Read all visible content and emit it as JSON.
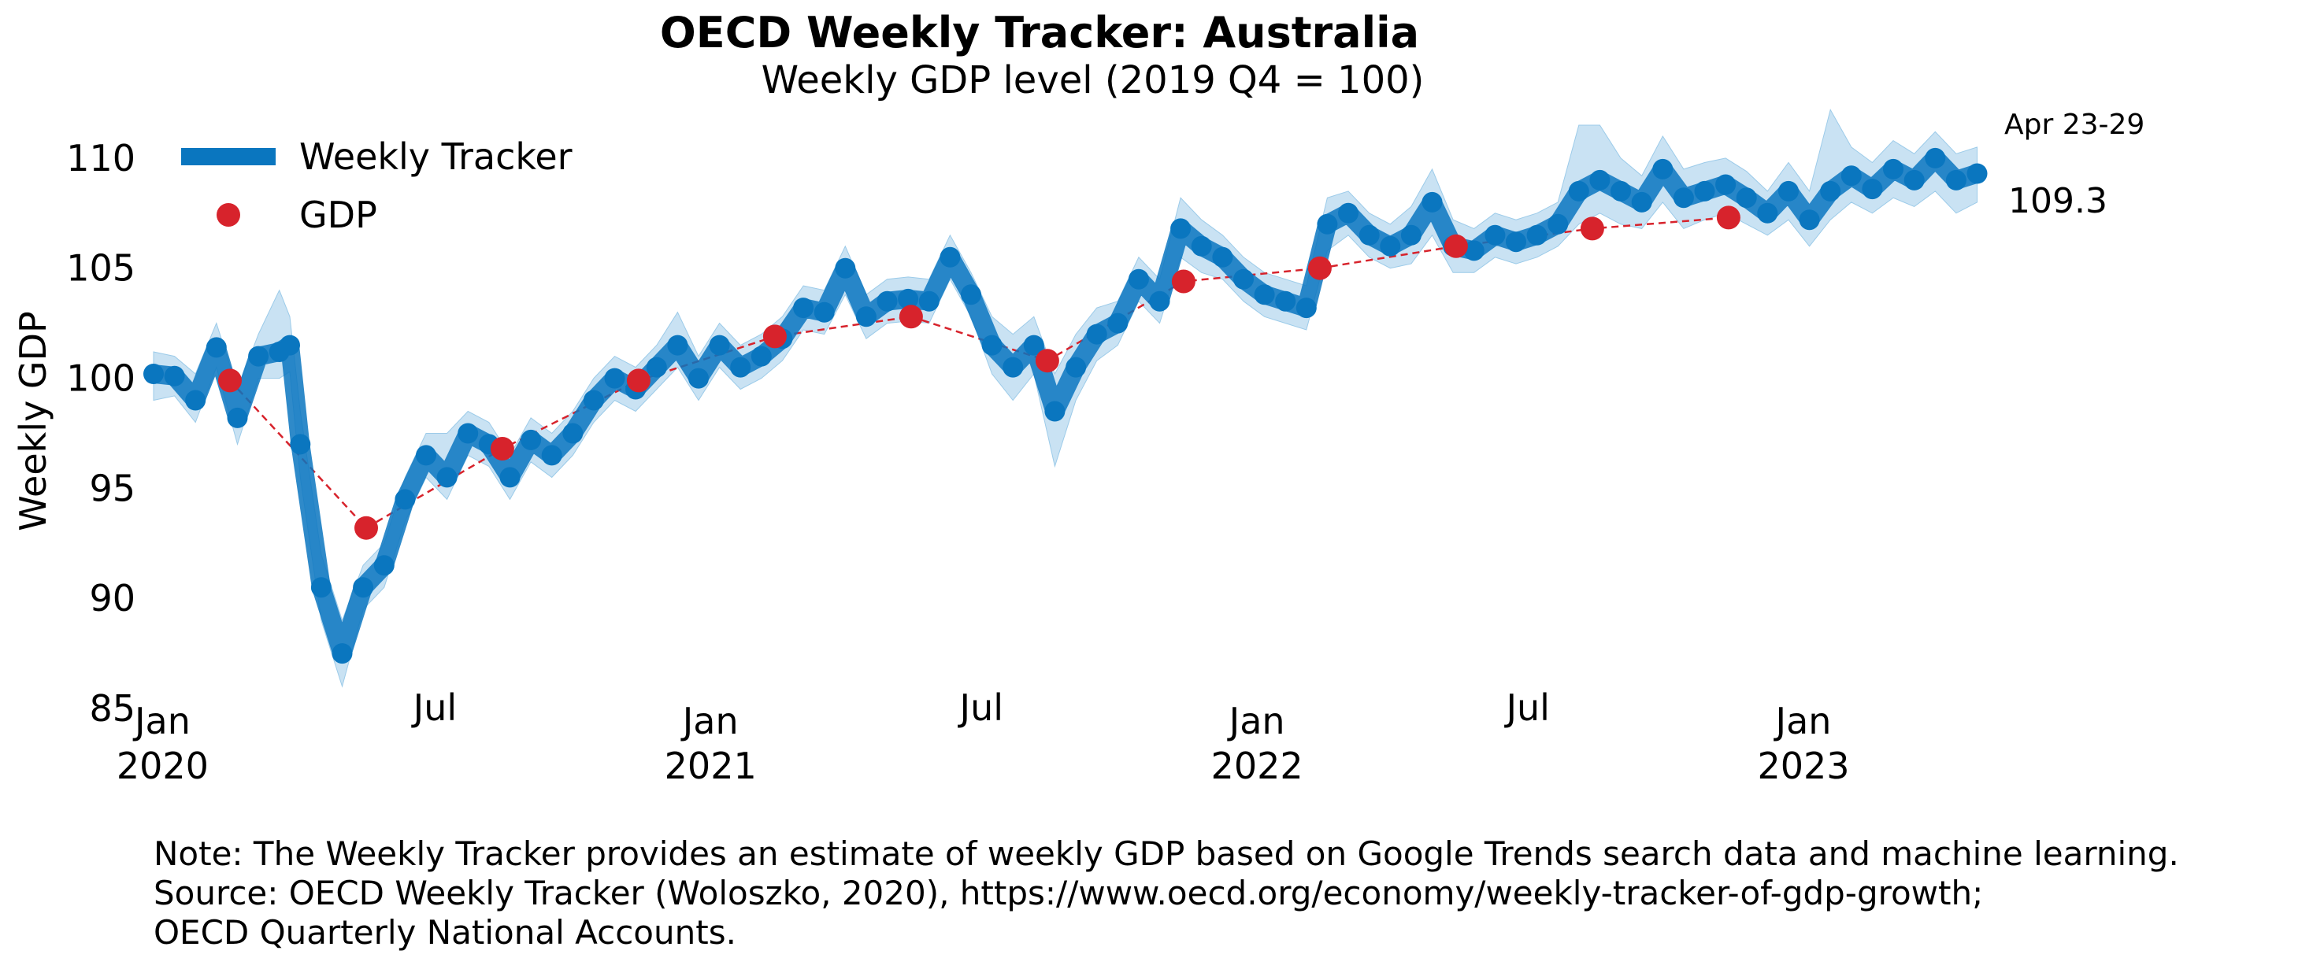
{
  "title": "OECD Weekly Tracker: Australia",
  "subtitle": "Weekly GDP level (2019 Q4 = 100)",
  "notes": [
    "Note: The Weekly Tracker provides an estimate of weekly GDP based on Google Trends search data and machine learning.",
    "Source: OECD Weekly Tracker (Woloszko, 2020), https://www.oecd.org/economy/weekly-tracker-of-gdp-growth;",
    "OECD Quarterly National Accounts."
  ],
  "colors": {
    "tracker": "#0a76bf",
    "band": "#9ccbe9",
    "gdp": "#d7232c"
  },
  "chart_data": {
    "type": "line",
    "xlabel": "",
    "ylabel": "Weekly GDP",
    "ylim": [
      85,
      112
    ],
    "yticks": [
      85,
      90,
      95,
      100,
      105,
      110
    ],
    "xlim": [
      "2019-12-26",
      "2023-05-02"
    ],
    "xticks": [
      {
        "date": "2020-01-01",
        "label": [
          "Jan",
          "2020"
        ]
      },
      {
        "date": "2020-07-01",
        "label": [
          "Jul"
        ]
      },
      {
        "date": "2021-01-01",
        "label": [
          "Jan",
          "2021"
        ]
      },
      {
        "date": "2021-07-01",
        "label": [
          "Jul"
        ]
      },
      {
        "date": "2022-01-01",
        "label": [
          "Jan",
          "2022"
        ]
      },
      {
        "date": "2022-07-01",
        "label": [
          "Jul"
        ]
      },
      {
        "date": "2023-01-01",
        "label": [
          "Jan",
          "2023"
        ]
      }
    ],
    "legend": {
      "position": "top-left",
      "entries": [
        "Weekly Tracker",
        "GDP"
      ]
    },
    "grid": false,
    "end_label": {
      "period": "Apr 23-29",
      "value": "109.3"
    },
    "series": [
      {
        "name": "Weekly Tracker",
        "x": [
          "2019-12-26",
          "2020-01-09",
          "2020-01-23",
          "2020-02-06",
          "2020-02-20",
          "2020-03-05",
          "2020-03-19",
          "2020-03-26",
          "2020-04-02",
          "2020-04-16",
          "2020-04-30",
          "2020-05-14",
          "2020-05-28",
          "2020-06-11",
          "2020-06-25",
          "2020-07-09",
          "2020-07-23",
          "2020-08-06",
          "2020-08-20",
          "2020-09-03",
          "2020-09-17",
          "2020-10-01",
          "2020-10-15",
          "2020-10-29",
          "2020-11-12",
          "2020-11-26",
          "2020-12-10",
          "2020-12-24",
          "2021-01-07",
          "2021-01-21",
          "2021-02-04",
          "2021-02-18",
          "2021-03-04",
          "2021-03-18",
          "2021-04-01",
          "2021-04-15",
          "2021-04-29",
          "2021-05-13",
          "2021-05-27",
          "2021-06-10",
          "2021-06-24",
          "2021-07-08",
          "2021-07-22",
          "2021-08-05",
          "2021-08-19",
          "2021-09-02",
          "2021-09-16",
          "2021-09-30",
          "2021-10-14",
          "2021-10-28",
          "2021-11-11",
          "2021-11-25",
          "2021-12-09",
          "2021-12-23",
          "2022-01-06",
          "2022-01-20",
          "2022-02-03",
          "2022-02-17",
          "2022-03-03",
          "2022-03-17",
          "2022-03-31",
          "2022-04-14",
          "2022-04-28",
          "2022-05-12",
          "2022-05-26",
          "2022-06-09",
          "2022-06-23",
          "2022-07-07",
          "2022-07-21",
          "2022-08-04",
          "2022-08-18",
          "2022-09-01",
          "2022-09-15",
          "2022-09-29",
          "2022-10-13",
          "2022-10-27",
          "2022-11-10",
          "2022-11-24",
          "2022-12-08",
          "2022-12-22",
          "2023-01-05",
          "2023-01-19",
          "2023-02-02",
          "2023-02-16",
          "2023-03-02",
          "2023-03-16",
          "2023-03-30",
          "2023-04-13",
          "2023-04-27"
        ],
        "values": [
          100.2,
          100.1,
          99.0,
          101.4,
          98.2,
          101.0,
          101.2,
          101.5,
          97.0,
          90.5,
          87.5,
          90.5,
          91.5,
          94.5,
          96.5,
          95.5,
          97.5,
          97.0,
          95.5,
          97.2,
          96.5,
          97.5,
          99.0,
          100.0,
          99.5,
          100.5,
          101.5,
          100.0,
          101.5,
          100.5,
          101.0,
          101.8,
          103.2,
          103.0,
          105.0,
          102.8,
          103.5,
          103.6,
          103.5,
          105.5,
          103.8,
          101.5,
          100.5,
          101.5,
          98.5,
          100.5,
          102.0,
          102.5,
          104.5,
          103.5,
          106.8,
          106.0,
          105.5,
          104.5,
          103.8,
          103.5,
          103.2,
          107.0,
          107.5,
          106.5,
          106.0,
          106.5,
          108.0,
          106.0,
          105.8,
          106.5,
          106.2,
          106.5,
          107.0,
          108.5,
          109.0,
          108.5,
          108.0,
          109.5,
          108.2,
          108.5,
          108.8,
          108.2,
          107.5,
          108.5,
          107.2,
          108.5,
          109.2,
          108.6,
          109.5,
          109.0,
          110.0,
          109.0,
          109.3
        ],
        "lower": [
          99.0,
          99.2,
          98.0,
          100.5,
          97.0,
          100.0,
          100.0,
          100.3,
          95.5,
          89.0,
          86.0,
          89.5,
          90.5,
          93.5,
          95.5,
          94.5,
          96.5,
          96.0,
          94.5,
          96.2,
          95.5,
          96.5,
          98.0,
          99.0,
          98.5,
          99.5,
          100.5,
          99.0,
          100.5,
          99.5,
          100.0,
          100.8,
          102.2,
          102.0,
          103.8,
          101.8,
          102.5,
          102.6,
          102.5,
          104.5,
          102.8,
          100.2,
          99.0,
          100.2,
          96.0,
          99.0,
          100.8,
          101.5,
          103.5,
          102.5,
          105.5,
          104.8,
          104.5,
          103.5,
          102.8,
          102.5,
          102.2,
          105.8,
          106.5,
          105.5,
          105.0,
          105.2,
          106.5,
          104.8,
          104.8,
          105.5,
          105.2,
          105.5,
          106.0,
          107.0,
          107.5,
          107.0,
          106.8,
          108.0,
          106.8,
          107.2,
          107.5,
          107.0,
          106.5,
          107.2,
          106.0,
          107.2,
          108.0,
          107.5,
          108.2,
          107.8,
          108.5,
          107.5,
          108.0
        ],
        "upper": [
          101.2,
          101.0,
          100.2,
          102.5,
          99.5,
          102.0,
          104.0,
          102.8,
          98.5,
          92.0,
          89.0,
          91.5,
          92.5,
          95.5,
          97.5,
          97.5,
          98.5,
          98.0,
          96.5,
          98.2,
          97.5,
          98.5,
          100.0,
          101.0,
          100.5,
          101.5,
          103.0,
          101.0,
          102.5,
          101.5,
          102.0,
          102.8,
          104.2,
          104.0,
          106.0,
          103.8,
          104.5,
          104.6,
          104.5,
          106.5,
          104.8,
          102.8,
          102.0,
          102.8,
          100.2,
          102.0,
          103.2,
          103.5,
          105.5,
          104.5,
          108.2,
          107.2,
          106.5,
          105.5,
          104.8,
          104.5,
          104.2,
          108.2,
          108.5,
          107.5,
          107.0,
          107.8,
          109.5,
          107.2,
          106.8,
          107.5,
          107.2,
          107.5,
          108.0,
          111.5,
          111.5,
          110.0,
          109.2,
          111.0,
          109.5,
          109.8,
          110.0,
          109.4,
          108.5,
          109.8,
          108.5,
          112.2,
          110.5,
          109.8,
          110.8,
          110.2,
          111.2,
          110.2,
          110.5
        ]
      },
      {
        "name": "GDP",
        "x": [
          "2020-02-15",
          "2020-05-16",
          "2020-08-15",
          "2020-11-14",
          "2021-02-13",
          "2021-05-15",
          "2021-08-14",
          "2021-11-13",
          "2022-02-12",
          "2022-05-14",
          "2022-08-13",
          "2022-11-12"
        ],
        "values": [
          99.9,
          93.2,
          96.8,
          99.9,
          101.9,
          102.8,
          100.8,
          104.4,
          105.0,
          106.0,
          106.8,
          107.3
        ]
      }
    ]
  }
}
